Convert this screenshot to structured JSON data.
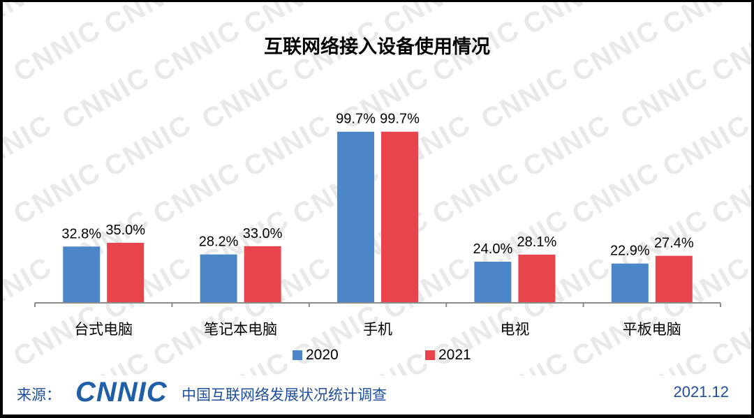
{
  "chart_data": {
    "type": "bar",
    "title": "互联网络接入设备使用情况",
    "categories": [
      "台式电脑",
      "笔记本电脑",
      "手机",
      "电视",
      "平板电脑"
    ],
    "series": [
      {
        "name": "2020",
        "color": "#4a86c8",
        "values": [
          32.8,
          28.2,
          99.7,
          24.0,
          22.9
        ],
        "labels": [
          "32.8%",
          "28.2%",
          "99.7%",
          "24.0%",
          "22.9%"
        ]
      },
      {
        "name": "2021",
        "color": "#e8444c",
        "values": [
          35.0,
          33.0,
          99.7,
          28.1,
          27.4
        ],
        "labels": [
          "35.0%",
          "33.0%",
          "99.7%",
          "28.1%",
          "27.4%"
        ]
      }
    ],
    "xlabel": "",
    "ylabel": "",
    "ylim": [
      0,
      100
    ],
    "grid": false,
    "legend_position": "bottom"
  },
  "footer": {
    "source_label": "来源：",
    "logo_text": "CNNIC",
    "organization": "中国互联网络发展状况统计调查",
    "date": "2021.12"
  },
  "watermark_text": "CNNIC"
}
